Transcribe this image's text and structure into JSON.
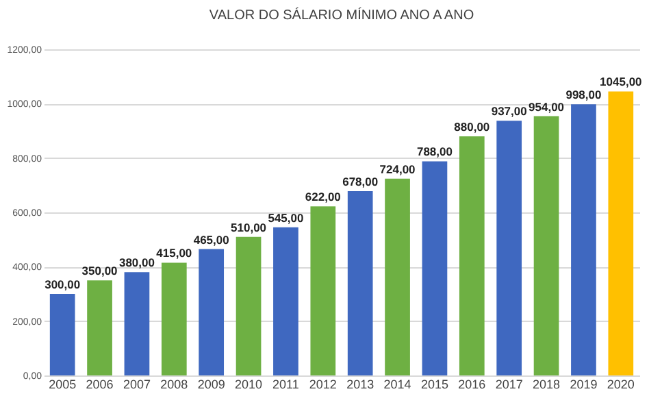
{
  "chart_data": {
    "type": "bar",
    "title": "VALOR DO SÁLARIO MÍNIMO ANO A ANO",
    "categories": [
      "2005",
      "2006",
      "2007",
      "2008",
      "2009",
      "2010",
      "2011",
      "2012",
      "2013",
      "2014",
      "2015",
      "2016",
      "2017",
      "2018",
      "2019",
      "2020"
    ],
    "values": [
      300,
      350,
      380,
      415,
      465,
      510,
      545,
      622,
      678,
      724,
      788,
      880,
      937,
      954,
      998,
      1045
    ],
    "value_labels": [
      "300,00",
      "350,00",
      "380,00",
      "415,00",
      "465,00",
      "510,00",
      "545,00",
      "622,00",
      "678,00",
      "724,00",
      "788,00",
      "880,00",
      "937,00",
      "954,00",
      "998,00",
      "1045,00"
    ],
    "colors": [
      "#3f68c0",
      "#6eb043",
      "#3f68c0",
      "#6eb043",
      "#3f68c0",
      "#6eb043",
      "#3f68c0",
      "#6eb043",
      "#3f68c0",
      "#6eb043",
      "#3f68c0",
      "#6eb043",
      "#3f68c0",
      "#6eb043",
      "#3f68c0",
      "#ffc000"
    ],
    "ylim": [
      0,
      1200
    ],
    "yticks": [
      {
        "value": 0,
        "label": "0,00"
      },
      {
        "value": 200,
        "label": "200,00"
      },
      {
        "value": 400,
        "label": "400,00"
      },
      {
        "value": 600,
        "label": "600,00"
      },
      {
        "value": 800,
        "label": "800,00"
      },
      {
        "value": 1000,
        "label": "1000,00"
      },
      {
        "value": 1200,
        "label": "1200,00"
      }
    ],
    "grid": "y"
  }
}
